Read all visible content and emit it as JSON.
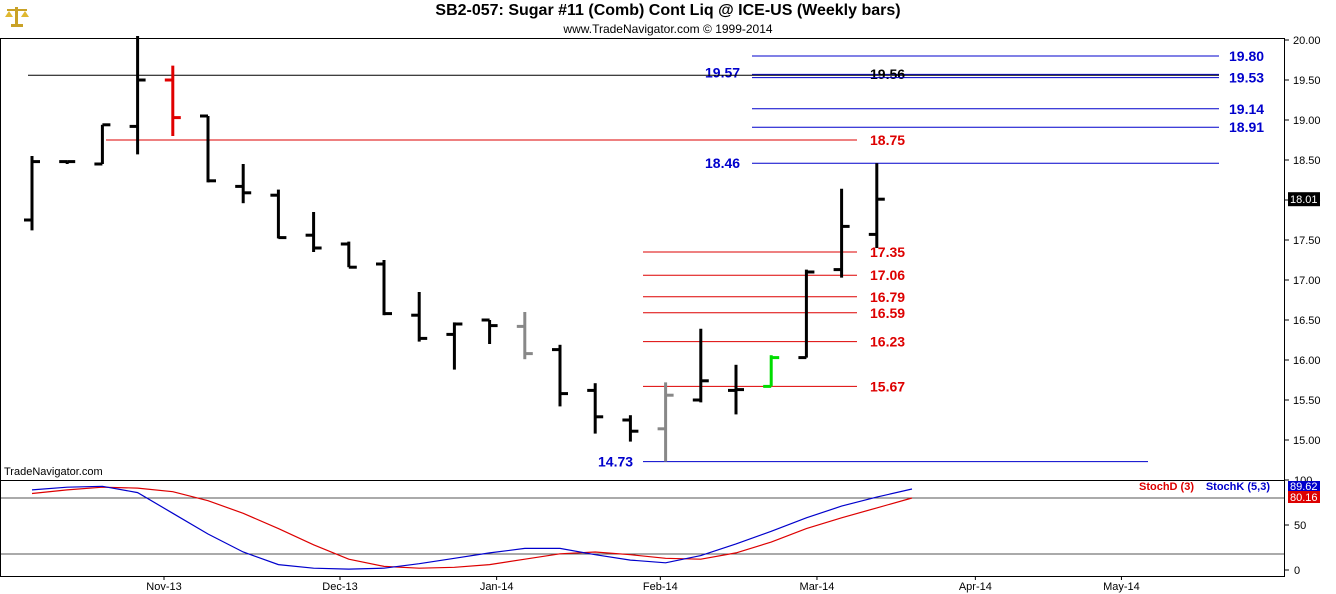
{
  "header": {
    "title": "SB2-057:  Sugar #11 (Comb) Cont Liq @ ICE-US  (Weekly bars)",
    "subtitle": "www.TradeNavigator.com © 1999-2014"
  },
  "watermark": "TradeNavigator.com",
  "colors": {
    "bar": "#000000",
    "bar_red": "#e00000",
    "bar_grey": "#888888",
    "bar_green": "#00dd00",
    "level_red": "#dd0000",
    "level_blue": "#0000cc",
    "stoch_d": "#dd0000",
    "stoch_k": "#0000cc"
  },
  "chart_data": [
    {
      "type": "ohlc",
      "ylim": [
        14.6,
        20.05
      ],
      "y_ticks": [
        "20.00",
        "19.50",
        "19.00",
        "18.50",
        "18.00",
        "17.50",
        "17.00",
        "16.50",
        "16.00",
        "15.50",
        "15.00"
      ],
      "x_ticks": [
        "Nov-13",
        "Dec-13",
        "Jan-14",
        "Feb-14",
        "Mar-14",
        "Apr-14",
        "May-14"
      ],
      "last_price": "18.01",
      "bars": [
        {
          "week": 0,
          "open": 17.75,
          "high": 18.55,
          "low": 17.62,
          "close": 18.48,
          "color": "black"
        },
        {
          "week": 1,
          "open": 18.48,
          "high": 18.48,
          "low": 18.45,
          "close": 18.48,
          "color": "black"
        },
        {
          "week": 2,
          "open": 18.45,
          "high": 18.94,
          "low": 18.45,
          "close": 18.94,
          "color": "black"
        },
        {
          "week": 3,
          "open": 18.92,
          "high": 20.05,
          "low": 18.57,
          "close": 19.5,
          "color": "black"
        },
        {
          "week": 4,
          "open": 19.5,
          "high": 19.68,
          "low": 18.8,
          "close": 19.03,
          "color": "red"
        },
        {
          "week": 5,
          "open": 19.05,
          "high": 19.05,
          "low": 18.22,
          "close": 18.24,
          "color": "black"
        },
        {
          "week": 6,
          "open": 18.17,
          "high": 18.45,
          "low": 17.96,
          "close": 18.09,
          "color": "black"
        },
        {
          "week": 7,
          "open": 18.06,
          "high": 18.13,
          "low": 17.52,
          "close": 17.53,
          "color": "black"
        },
        {
          "week": 8,
          "open": 17.56,
          "high": 17.85,
          "low": 17.35,
          "close": 17.4,
          "color": "black"
        },
        {
          "week": 9,
          "open": 17.45,
          "high": 17.48,
          "low": 17.16,
          "close": 17.16,
          "color": "black"
        },
        {
          "week": 10,
          "open": 17.2,
          "high": 17.25,
          "low": 16.56,
          "close": 16.58,
          "color": "black"
        },
        {
          "week": 11,
          "open": 16.56,
          "high": 16.85,
          "low": 16.23,
          "close": 16.27,
          "color": "black"
        },
        {
          "week": 12,
          "open": 16.32,
          "high": 16.47,
          "low": 15.88,
          "close": 16.45,
          "color": "black"
        },
        {
          "week": 13,
          "open": 16.5,
          "high": 16.5,
          "low": 16.2,
          "close": 16.43,
          "color": "black"
        },
        {
          "week": 14,
          "open": 16.42,
          "high": 16.6,
          "low": 16.01,
          "close": 16.08,
          "color": "grey"
        },
        {
          "week": 15,
          "open": 16.13,
          "high": 16.19,
          "low": 15.42,
          "close": 15.58,
          "color": "black"
        },
        {
          "week": 16,
          "open": 15.62,
          "high": 15.71,
          "low": 15.08,
          "close": 15.29,
          "color": "black"
        },
        {
          "week": 17,
          "open": 15.25,
          "high": 15.31,
          "low": 14.98,
          "close": 15.11,
          "color": "black"
        },
        {
          "week": 18,
          "open": 15.14,
          "high": 15.72,
          "low": 14.73,
          "close": 15.56,
          "color": "grey"
        },
        {
          "week": 19,
          "open": 15.5,
          "high": 16.39,
          "low": 15.47,
          "close": 15.74,
          "color": "black"
        },
        {
          "week": 20,
          "open": 15.62,
          "high": 15.94,
          "low": 15.32,
          "close": 15.63,
          "color": "black"
        },
        {
          "week": 21,
          "open": 15.67,
          "high": 16.06,
          "low": 15.67,
          "close": 16.03,
          "color": "green"
        },
        {
          "week": 22,
          "open": 16.03,
          "high": 17.13,
          "low": 16.03,
          "close": 17.1,
          "color": "black"
        },
        {
          "week": 23,
          "open": 17.13,
          "high": 18.14,
          "low": 17.03,
          "close": 17.67,
          "color": "black"
        },
        {
          "week": 24,
          "open": 17.57,
          "high": 18.46,
          "low": 17.4,
          "close": 18.01,
          "color": "black"
        }
      ],
      "levels": [
        {
          "label": "19.80",
          "value": 19.8,
          "color": "blue",
          "label_side": "right"
        },
        {
          "label": "19.57",
          "value": 19.57,
          "color": "blue",
          "label_side": "left"
        },
        {
          "label": "19.56",
          "value": 19.56,
          "color": "black",
          "label_side": "mid"
        },
        {
          "label": "19.53",
          "value": 19.53,
          "color": "blue",
          "label_side": "right"
        },
        {
          "label": "19.14",
          "value": 19.14,
          "color": "blue",
          "label_side": "right"
        },
        {
          "label": "18.91",
          "value": 18.91,
          "color": "blue",
          "label_side": "right"
        },
        {
          "label": "18.75",
          "value": 18.75,
          "color": "red",
          "label_side": "mid"
        },
        {
          "label": "18.46",
          "value": 18.46,
          "color": "blue",
          "label_side": "left"
        },
        {
          "label": "17.35",
          "value": 17.35,
          "color": "red",
          "label_side": "mid"
        },
        {
          "label": "17.06",
          "value": 17.06,
          "color": "red",
          "label_side": "mid"
        },
        {
          "label": "16.79",
          "value": 16.79,
          "color": "red",
          "label_side": "mid"
        },
        {
          "label": "16.59",
          "value": 16.59,
          "color": "red",
          "label_side": "mid"
        },
        {
          "label": "16.23",
          "value": 16.23,
          "color": "red",
          "label_side": "mid"
        },
        {
          "label": "15.67",
          "value": 15.67,
          "color": "red",
          "label_side": "mid"
        },
        {
          "label": "14.73",
          "value": 14.73,
          "color": "blue",
          "label_side": "left"
        }
      ]
    },
    {
      "type": "line",
      "ylim": [
        0,
        100
      ],
      "y_ticks": [
        "0",
        "50",
        "100"
      ],
      "legend": [
        "StochD (3)",
        "StochK (5,3)"
      ],
      "last_values": {
        "stoch_d": "80.16",
        "stoch_k": "89.62"
      },
      "series": [
        {
          "name": "StochD (3)",
          "values": [
            85,
            89,
            92,
            91,
            87,
            77,
            63,
            46,
            28,
            12,
            4,
            2,
            3,
            6,
            12,
            18,
            20,
            17,
            13,
            12,
            19,
            31,
            46,
            58,
            69,
            80
          ]
        },
        {
          "name": "StochK (5,3)",
          "values": [
            89,
            92,
            93,
            86,
            63,
            40,
            20,
            6,
            2,
            1,
            2,
            7,
            13,
            19,
            24,
            24,
            17,
            11,
            8,
            16,
            29,
            43,
            58,
            71,
            81,
            90
          ]
        }
      ]
    }
  ]
}
